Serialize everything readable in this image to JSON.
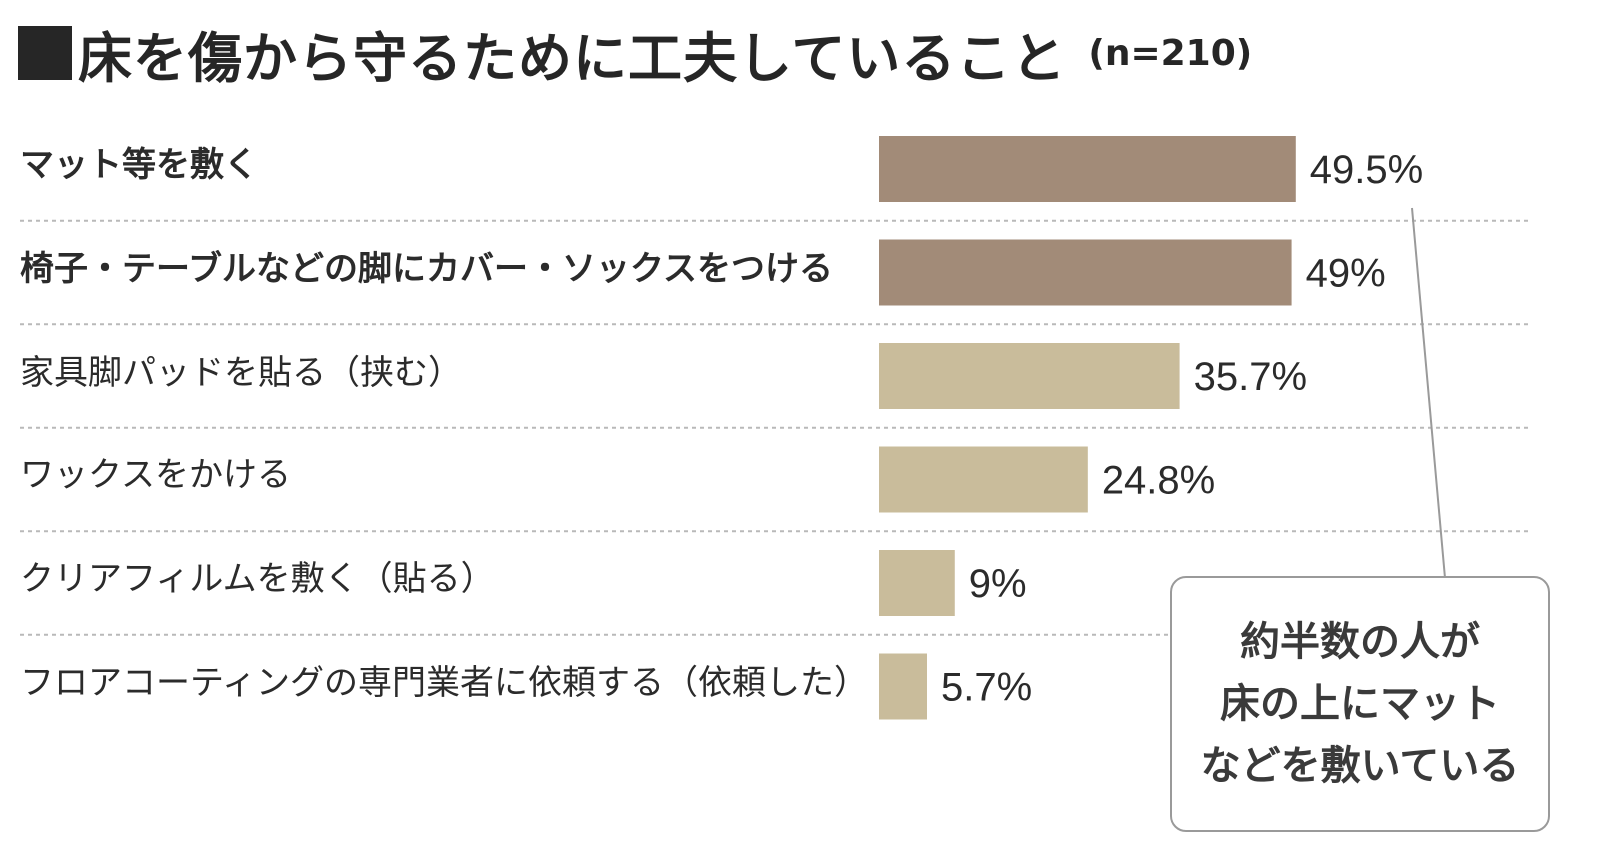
{
  "title": {
    "marker": "■",
    "text": "床を傷から守るために工夫していること",
    "sample": "(n=210)"
  },
  "colors": {
    "bar_dark": "#a28b78",
    "bar_light": "#c9bc9b",
    "divider": "#b9b9b9",
    "callout_border": "#9a9a9a"
  },
  "callout": {
    "lines": [
      "約半数の人が",
      "床の上にマット",
      "などを敷いている"
    ]
  },
  "chart_data": {
    "type": "bar",
    "orientation": "horizontal",
    "categories": [
      "マット等を敷く",
      "椅子・テーブルなどの脚にカバー・ソックスをつける",
      "家具脚パッドを貼る（挟む）",
      "ワックスをかける",
      "クリアフィルムを敷く（貼る）",
      "フロアコーティングの専門業者に依頼する（依頼した）"
    ],
    "values": [
      49.5,
      49,
      35.7,
      24.8,
      9,
      5.7
    ],
    "value_labels": [
      "49.5%",
      "49%",
      "35.7%",
      "24.8%",
      "9%",
      "5.7%"
    ],
    "highlight": [
      true,
      true,
      false,
      false,
      false,
      false
    ],
    "unit": "%",
    "grid": false,
    "legend": "none"
  }
}
